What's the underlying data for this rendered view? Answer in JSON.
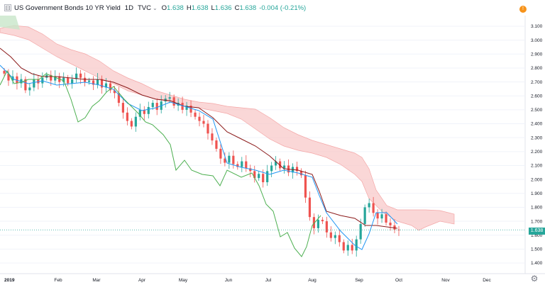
{
  "header": {
    "collapse_glyph": "⊟",
    "symbol": "US Government Bonds 10 YR Yield",
    "interval": "1D",
    "source": "TVC",
    "caret": "⌄",
    "o_label": "O",
    "o_value": "1.638",
    "h_label": "H",
    "h_value": "1.638",
    "l_label": "L",
    "l_value": "1.636",
    "c_label": "C",
    "c_value": "1.638",
    "change": "-0.004 (-0.21%)",
    "alert_glyph": "!"
  },
  "last_price_label": "1.638",
  "settings_icon": "gear-icon",
  "colors": {
    "up": "#26a69a",
    "down": "#ef5350",
    "cloud": "#f8c9c9",
    "kijun": "#8b1a1a",
    "tenkan": "#2196f3",
    "chikou": "#4caf50",
    "accent": "#f7931a"
  },
  "chart_data": {
    "type": "candlestick",
    "y_axis": {
      "ylim": [
        1.34,
        3.18
      ],
      "ticks": [
        "3.100",
        "3.000",
        "2.900",
        "2.800",
        "2.700",
        "2.600",
        "2.500",
        "2.400",
        "2.300",
        "2.200",
        "2.100",
        "2.000",
        "1.900",
        "1.800",
        "1.700",
        "1.600",
        "1.500",
        "1.400"
      ]
    },
    "x_axis": {
      "labels": [
        "2019",
        "Feb",
        "Mar",
        "Apr",
        "May",
        "Jun",
        "Jul",
        "Aug",
        "Sep",
        "Oct",
        "Nov",
        "Dec"
      ]
    },
    "series_closes": [
      2.76,
      2.71,
      2.74,
      2.69,
      2.72,
      2.64,
      2.66,
      2.72,
      2.69,
      2.73,
      2.75,
      2.71,
      2.74,
      2.7,
      2.73,
      2.69,
      2.72,
      2.76,
      2.73,
      2.7,
      2.71,
      2.68,
      2.72,
      2.66,
      2.69,
      2.64,
      2.62,
      2.55,
      2.48,
      2.42,
      2.38,
      2.45,
      2.5,
      2.47,
      2.52,
      2.55,
      2.5,
      2.56,
      2.58,
      2.59,
      2.53,
      2.55,
      2.5,
      2.53,
      2.48,
      2.45,
      2.42,
      2.4,
      2.33,
      2.28,
      2.22,
      2.15,
      2.12,
      2.17,
      2.11,
      2.09,
      2.13,
      2.08,
      2.06,
      2.01,
      2.04,
      1.98,
      2.06,
      2.1,
      2.13,
      2.08,
      2.1,
      2.05,
      2.09,
      2.06,
      2.03,
      1.87,
      1.73,
      1.65,
      1.71,
      1.7,
      1.62,
      1.58,
      1.6,
      1.55,
      1.49,
      1.53,
      1.49,
      1.57,
      1.68,
      1.8,
      1.83,
      1.76,
      1.72,
      1.75,
      1.69,
      1.67,
      1.64,
      1.638
    ]
  }
}
